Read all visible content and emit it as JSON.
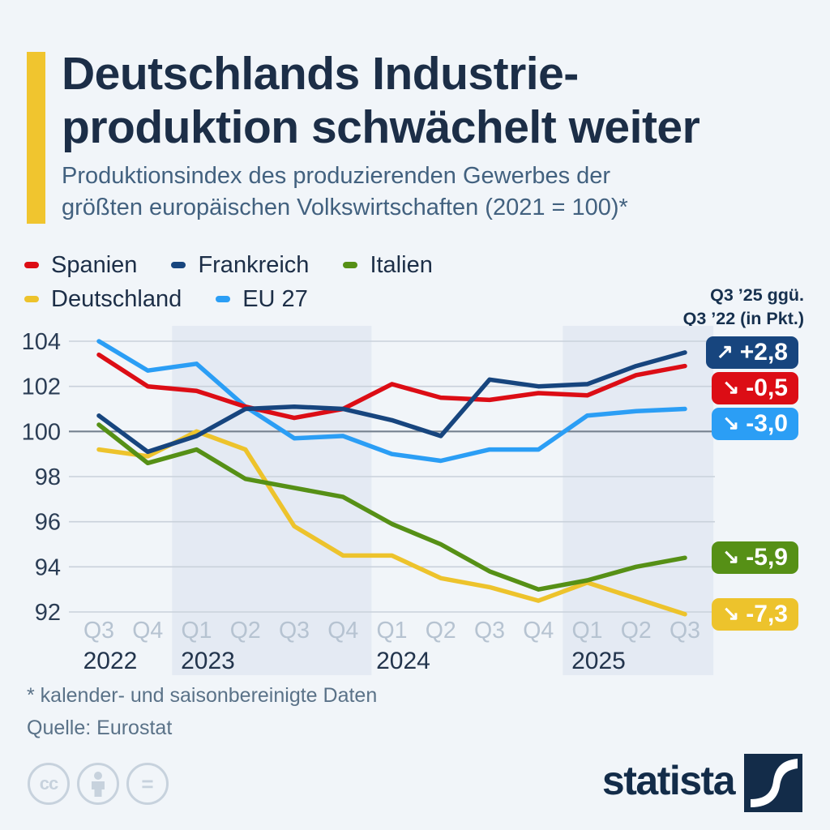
{
  "header": {
    "title_line1": "Deutschlands Industrie-",
    "title_line2": "produktion schwächelt weiter",
    "subtitle_line1": "Produktionsindex des produzierenden Gewerbes der",
    "subtitle_line2": "größten europäischen Volkswirtschaften (2021 = 100)*"
  },
  "annotation": {
    "line1": "Q3 ’25 ggü.",
    "line2": "Q3 ’22 (in Pkt.)"
  },
  "theme": {
    "accent_yellow": "#f0c52f",
    "title_color": "#1c2e47",
    "band_color": "#e4eaf3",
    "grid_color": "#c9d1db",
    "baseline_grid_color": "#76828f",
    "tick_label_color": "#2b3d55",
    "quarter_label_color": "#b6c3d1",
    "year_label_color": "#22344c"
  },
  "chart_data": {
    "type": "line",
    "x_categories": [
      "Q3",
      "Q4",
      "Q1",
      "Q2",
      "Q3",
      "Q4",
      "Q1",
      "Q2",
      "Q3",
      "Q4",
      "Q1",
      "Q2",
      "Q3"
    ],
    "year_labels": [
      {
        "text": "2022",
        "index": 0
      },
      {
        "text": "2023",
        "index": 2
      },
      {
        "text": "2024",
        "index": 6
      },
      {
        "text": "2025",
        "index": 10
      }
    ],
    "shaded_periods": [
      {
        "from_index": 2,
        "to_index": 5
      },
      {
        "from_index": 10,
        "to_index": 12
      }
    ],
    "yticks": [
      92,
      94,
      96,
      98,
      100,
      102,
      104
    ],
    "ylim": [
      92,
      104
    ],
    "baseline_value": 100,
    "grid": true,
    "legend_position": "top-left",
    "series": [
      {
        "name": "Spanien",
        "color": "#dc0d15",
        "values": [
          103.4,
          102.0,
          101.8,
          101.1,
          100.6,
          101.0,
          102.1,
          101.5,
          101.4,
          101.7,
          101.6,
          102.5,
          102.9
        ],
        "badge": {
          "label": "-0,5",
          "direction": "down"
        }
      },
      {
        "name": "Frankreich",
        "color": "#17457e",
        "values": [
          100.7,
          99.1,
          99.8,
          101.0,
          101.1,
          101.0,
          100.5,
          99.8,
          102.3,
          102.0,
          102.1,
          102.9,
          103.5
        ],
        "badge": {
          "label": "+2,8",
          "direction": "up"
        }
      },
      {
        "name": "Italien",
        "color": "#569016",
        "values": [
          100.3,
          98.6,
          99.2,
          97.9,
          97.5,
          97.1,
          95.9,
          95.0,
          93.8,
          93.0,
          93.4,
          94.0,
          94.4
        ],
        "badge": {
          "label": "-5,9",
          "direction": "down"
        }
      },
      {
        "name": "Deutschland",
        "color": "#edc32c",
        "values": [
          99.2,
          98.9,
          100.0,
          99.2,
          95.8,
          94.5,
          94.5,
          93.5,
          93.1,
          92.5,
          93.3,
          92.6,
          91.9
        ],
        "badge": {
          "label": "-7,3",
          "direction": "down"
        }
      },
      {
        "name": "EU 27",
        "color": "#2b9ef5",
        "values": [
          104.0,
          102.7,
          103.0,
          101.1,
          99.7,
          99.8,
          99.0,
          98.7,
          99.2,
          99.2,
          100.7,
          100.9,
          101.0
        ],
        "badge": {
          "label": "-3,0",
          "direction": "down"
        }
      }
    ]
  },
  "footnotes": {
    "line1": "* kalender- und saisonbereinigte Daten",
    "line2": "Quelle: Eurostat"
  },
  "branding": {
    "logo_text": "statista",
    "cc_label": "cc",
    "nd_label": "="
  }
}
